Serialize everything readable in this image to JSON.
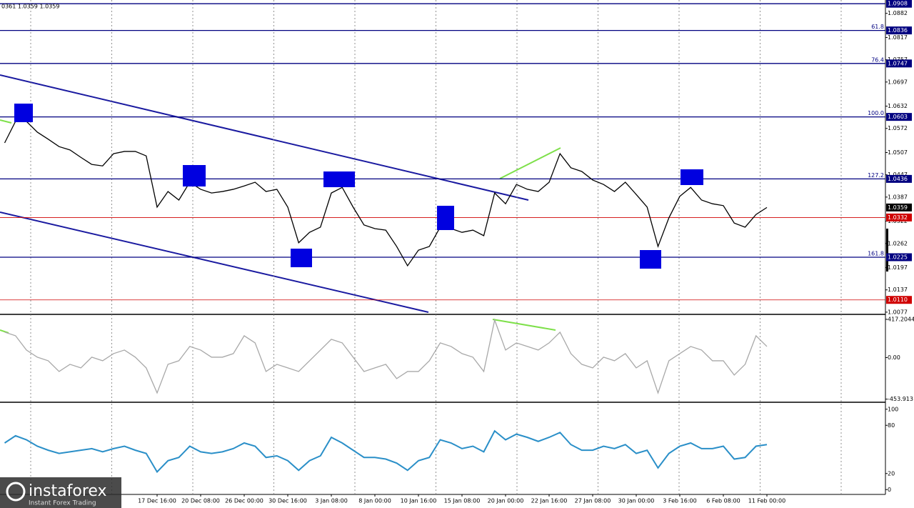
{
  "watermark": {
    "brand": "instaforex",
    "tagline": "Instant Forex Trading"
  },
  "chart_data": [
    {
      "type": "line",
      "header": "0361 1.0359 1.0359",
      "color": "#000000",
      "categories": [
        null,
        null,
        null,
        null,
        null,
        null,
        null,
        null,
        null,
        null,
        null,
        null,
        null,
        null,
        "17 Dec 16:00",
        null,
        null,
        null,
        "20 Dec 08:00",
        null,
        null,
        null,
        "26 Dec 00:00",
        null,
        null,
        null,
        "30 Dec 16:00",
        null,
        null,
        null,
        "3 Jan 08:00",
        null,
        null,
        null,
        "8 Jan 00:00",
        null,
        null,
        null,
        "10 Jan 16:00",
        null,
        null,
        null,
        "15 Jan 08:00",
        null,
        null,
        null,
        "20 Jan 00:00",
        null,
        null,
        null,
        "22 Jan 16:00",
        null,
        null,
        null,
        "27 Jan 08:00",
        null,
        null,
        null,
        "30 Jan 00:00",
        null,
        null,
        null,
        "3 Feb 16:00",
        null,
        null,
        null,
        "6 Feb 08:00",
        null,
        null,
        null,
        "11 Feb 00:00"
      ],
      "values": [
        1.0533,
        1.0591,
        1.0591,
        1.0562,
        1.0543,
        1.0523,
        1.0514,
        1.0494,
        1.0475,
        1.0471,
        1.0504,
        1.051,
        1.051,
        1.0498,
        1.036,
        1.0402,
        1.0379,
        1.0427,
        1.0408,
        1.0398,
        1.0402,
        1.0408,
        1.0417,
        1.0427,
        1.0402,
        1.0408,
        1.036,
        1.0264,
        1.0292,
        1.0306,
        1.0398,
        1.0413,
        1.036,
        1.0312,
        1.0302,
        1.0298,
        1.0254,
        1.0202,
        1.0244,
        1.0254,
        1.0306,
        1.0302,
        1.0292,
        1.0298,
        1.0283,
        1.0398,
        1.0369,
        1.0421,
        1.0408,
        1.0402,
        1.0427,
        1.0504,
        1.0466,
        1.0456,
        1.0433,
        1.0421,
        1.0402,
        1.0427,
        1.0394,
        1.036,
        1.0254,
        1.0331,
        1.0389,
        1.0413,
        1.0379,
        1.0369,
        1.0364,
        1.0317,
        1.0306,
        1.034,
        1.0359
      ],
      "ylim": [
        1.0071,
        1.0918
      ],
      "yticks": [
        1.0882,
        1.0817,
        1.0757,
        1.0697,
        1.0632,
        1.0572,
        1.0507,
        1.0447,
        1.0387,
        1.0322,
        1.0262,
        1.0197,
        1.0137,
        1.0077
      ],
      "levels": [
        {
          "value": 1.0908,
          "label": "1.0908",
          "color": "#000080",
          "line": true
        },
        {
          "value": 1.0836,
          "label": "1.0836",
          "color": "#000080",
          "line": true,
          "fib": "61.8"
        },
        {
          "value": 1.0747,
          "label": "1.0747",
          "color": "#000080",
          "line": true,
          "fib": "76.4"
        },
        {
          "value": 1.0603,
          "label": "1.0603",
          "color": "#000080",
          "line": true,
          "fib": "100.0"
        },
        {
          "value": 1.0436,
          "label": "1.0436",
          "color": "#000080",
          "line": true,
          "fib": "127.2"
        },
        {
          "value": 1.0359,
          "label": "1.0359",
          "color": "#000000",
          "line": false
        },
        {
          "value": 1.0332,
          "label": "1.0332",
          "color": "#d00000",
          "line": true
        },
        {
          "value": 1.0225,
          "label": "1.0225",
          "color": "#000080",
          "line": true,
          "fib": "161.8"
        },
        {
          "value": 1.011,
          "label": "1.0110",
          "color": "#d00000",
          "line": true
        }
      ]
    },
    {
      "type": "line",
      "color": "#a8a8a8",
      "values": [
        277,
        238,
        82,
        4,
        -35,
        -152,
        -74,
        -113,
        4,
        -35,
        43,
        82,
        4,
        -113,
        -386,
        -74,
        -35,
        121,
        82,
        4,
        4,
        43,
        238,
        160,
        -152,
        -74,
        -113,
        -152,
        -35,
        82,
        199,
        160,
        4,
        -152,
        -113,
        -74,
        -230,
        -152,
        -152,
        -35,
        160,
        121,
        43,
        4,
        -152,
        410,
        82,
        160,
        121,
        82,
        160,
        277,
        43,
        -74,
        -113,
        4,
        -35,
        43,
        -113,
        -35,
        -386,
        -35,
        43,
        121,
        82,
        -35,
        -35,
        -191,
        -74,
        238,
        121
      ],
      "ylim": [
        -480,
        440
      ],
      "yticks": [
        417.2044,
        {
          "value": 0,
          "label": "0.00"
        },
        -453.913
      ]
    },
    {
      "type": "line",
      "color": "#2a8fc8",
      "values": [
        58,
        67,
        62,
        54,
        49,
        45,
        47,
        49,
        51,
        47,
        51,
        54,
        49,
        45,
        22,
        36,
        40,
        54,
        47,
        45,
        47,
        51,
        58,
        54,
        40,
        42,
        36,
        24,
        36,
        42,
        65,
        58,
        49,
        40,
        40,
        38,
        33,
        24,
        36,
        40,
        62,
        58,
        51,
        54,
        47,
        73,
        62,
        69,
        65,
        60,
        65,
        71,
        56,
        49,
        49,
        54,
        51,
        56,
        45,
        49,
        27,
        45,
        54,
        58,
        51,
        51,
        54,
        38,
        40,
        54,
        56
      ],
      "ylim": [
        -6,
        106
      ],
      "yticks": [
        100,
        80,
        20,
        0
      ]
    }
  ]
}
